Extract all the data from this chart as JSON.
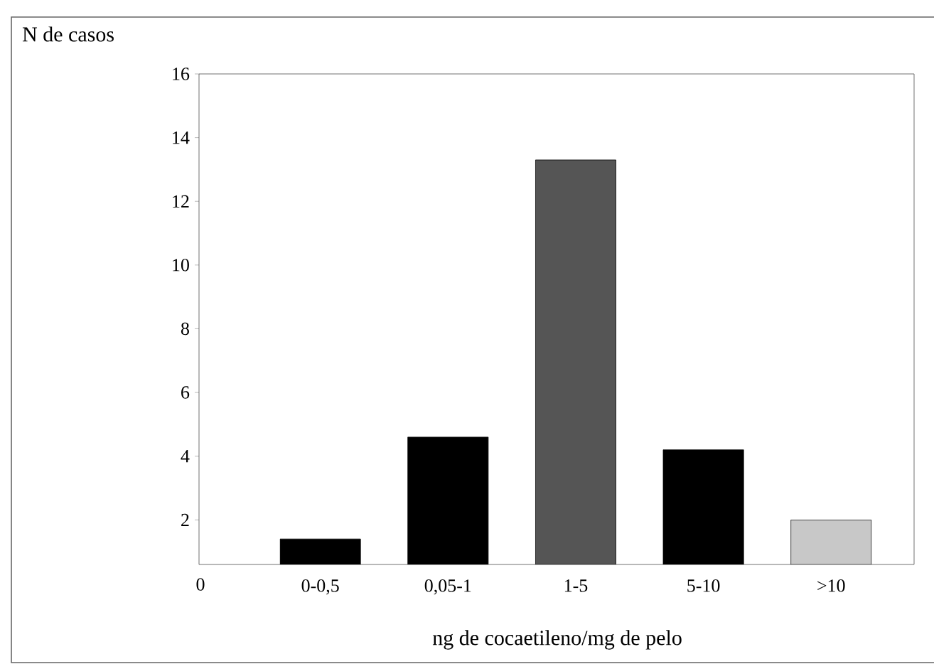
{
  "chart_data": {
    "type": "bar",
    "ylabel": "N de casos",
    "xlabel": "ng de cocaetileno/mg de pelo",
    "categories": [
      "0-0,5",
      "0,05-1",
      "1-5",
      "5-10",
      ">10"
    ],
    "values": [
      1.4,
      4.6,
      13.3,
      4.2,
      2.0
    ],
    "colors": [
      "#000000",
      "#000000",
      "#555555",
      "#000000",
      "#c8c8c8"
    ],
    "ylim": [
      0.6,
      16
    ],
    "yticks": [
      2,
      4,
      6,
      8,
      10,
      12,
      14,
      16
    ],
    "annotations": [
      "0"
    ]
  }
}
